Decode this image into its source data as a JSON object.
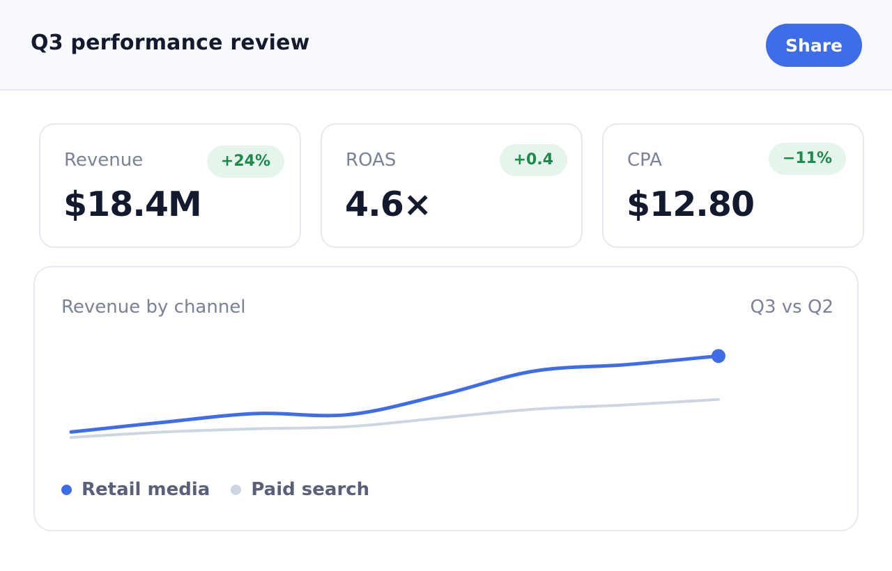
{
  "header": {
    "title": "Q3 performance review",
    "share_label": "Share"
  },
  "kpis": [
    {
      "label": "Revenue",
      "value": "$18.4M",
      "delta": "+24%"
    },
    {
      "label": "ROAS",
      "value": "4.6×",
      "delta": "+0.4"
    },
    {
      "label": "CPA",
      "value": "$12.80",
      "delta": "−11%"
    }
  ],
  "chart_card": {
    "title": "Revenue by channel",
    "compare": "Q3 vs Q2"
  },
  "chart_data": {
    "type": "line",
    "title": "Revenue by channel",
    "grid": false,
    "legend_placement": "bottom-left",
    "x": [
      0,
      1,
      2,
      3,
      4,
      5,
      6,
      7
    ],
    "ylim": [
      0,
      100
    ],
    "series": [
      {
        "name": "Retail media",
        "color": "#3f6de8",
        "values": [
          10,
          19,
          27,
          26,
          44,
          66,
          72,
          80
        ]
      },
      {
        "name": "Paid search",
        "color": "#cdd4e2",
        "values": [
          5,
          10,
          13,
          15,
          23,
          31,
          35,
          40
        ]
      }
    ]
  },
  "colors": {
    "accent": "#3f6de8",
    "positive_badge_bg": "#e6f5ec",
    "positive_badge_text": "#1b8a4a"
  }
}
